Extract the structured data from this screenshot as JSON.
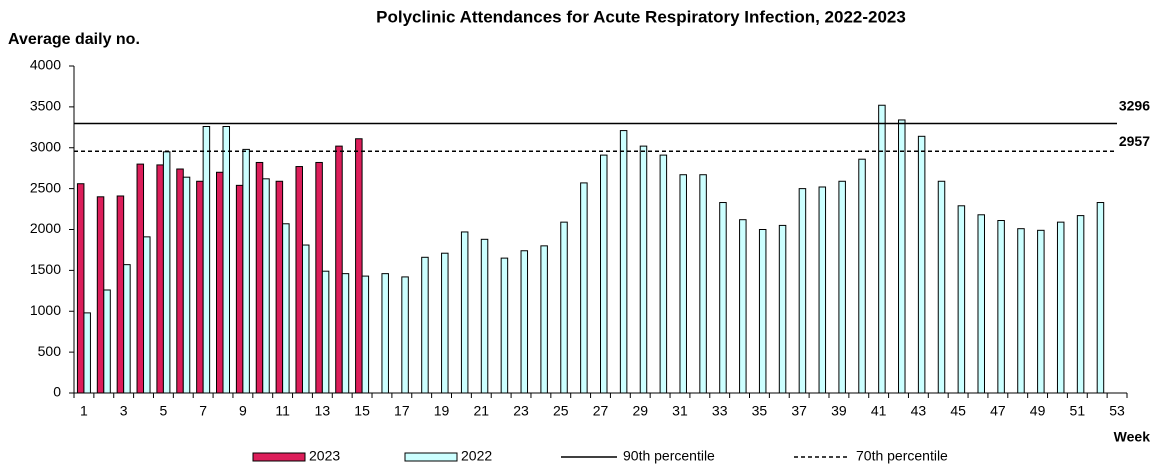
{
  "chart_data": {
    "type": "bar",
    "title": "Polyclinic Attendances for Acute Respiratory Infection, 2022-2023",
    "y_label": "Average daily no.",
    "x_label": "Week",
    "categories": [
      "1",
      null,
      "3",
      null,
      "5",
      null,
      "7",
      null,
      "9",
      null,
      "11",
      null,
      "13",
      null,
      "15",
      null,
      "17",
      null,
      "19",
      null,
      "21",
      null,
      "23",
      null,
      "25",
      null,
      "27",
      null,
      "29",
      null,
      "31",
      null,
      "33",
      null,
      "35",
      null,
      "37",
      null,
      "39",
      null,
      "41",
      null,
      "43",
      null,
      "45",
      null,
      "47",
      null,
      "49",
      null,
      "51",
      null,
      "53"
    ],
    "series": [
      {
        "name": "2023",
        "color": "#dc1e5a",
        "values": [
          2560,
          2400,
          2410,
          2800,
          2790,
          2740,
          2590,
          2700,
          2540,
          2820,
          2590,
          2770,
          2820,
          3020,
          3110,
          null,
          null,
          null,
          null,
          null,
          null,
          null,
          null,
          null,
          null,
          null,
          null,
          null,
          null,
          null,
          null,
          null,
          null,
          null,
          null,
          null,
          null,
          null,
          null,
          null,
          null,
          null,
          null,
          null,
          null,
          null,
          null,
          null,
          null,
          null,
          null,
          null,
          null
        ]
      },
      {
        "name": "2022",
        "color": "#ccffff",
        "values": [
          980,
          1260,
          1570,
          1910,
          2950,
          2640,
          3260,
          3260,
          2980,
          2620,
          2070,
          1810,
          1490,
          1460,
          1430,
          1460,
          1420,
          1660,
          1710,
          1970,
          1880,
          1650,
          1740,
          1800,
          2090,
          2570,
          2910,
          3210,
          3020,
          2910,
          2670,
          2670,
          2330,
          2120,
          2000,
          2050,
          2500,
          2520,
          2590,
          2860,
          3520,
          3340,
          3140,
          2590,
          2290,
          2180,
          2110,
          2010,
          1990,
          2090,
          2170,
          2330,
          null
        ]
      }
    ],
    "reference_lines": [
      {
        "name": "90th percentile",
        "value": 3296,
        "style": "solid",
        "color": "#000000"
      },
      {
        "name": "70th percentile",
        "value": 2957,
        "style": "dashed",
        "color": "#000000"
      }
    ],
    "ylim": [
      0,
      4000
    ],
    "yticks": [
      0,
      500,
      1000,
      1500,
      2000,
      2500,
      3000,
      3500,
      4000
    ],
    "grid": false,
    "legend": "bottom"
  }
}
